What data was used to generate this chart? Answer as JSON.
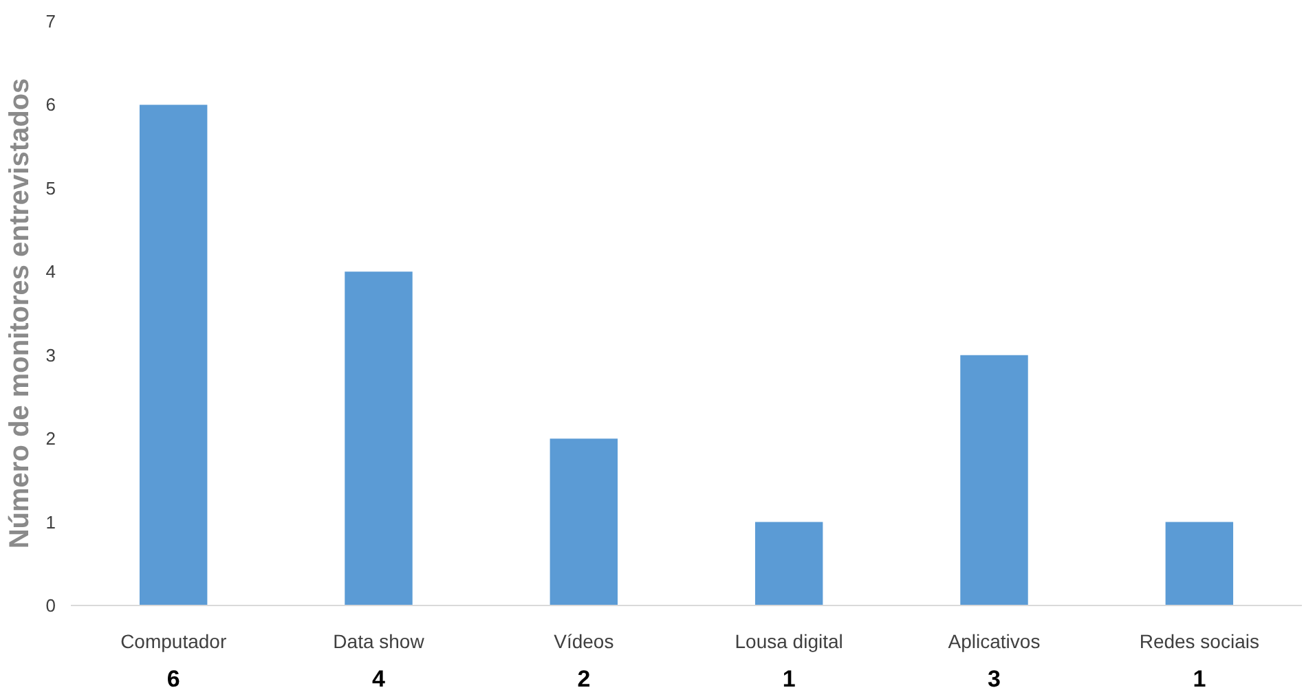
{
  "chart_data": {
    "type": "bar",
    "ylabel": "Número de monitores entrevistados",
    "categories": [
      "Computador",
      "Data show",
      "Vídeos",
      "Lousa digital",
      "Aplicativos",
      "Redes sociais"
    ],
    "values": [
      6,
      4,
      2,
      1,
      3,
      1
    ],
    "color": "#5b9bd5",
    "ylim": [
      0,
      7
    ],
    "yticks": [
      0,
      1,
      2,
      3,
      4,
      5,
      6,
      7
    ],
    "grid": false,
    "data_labels": true
  }
}
